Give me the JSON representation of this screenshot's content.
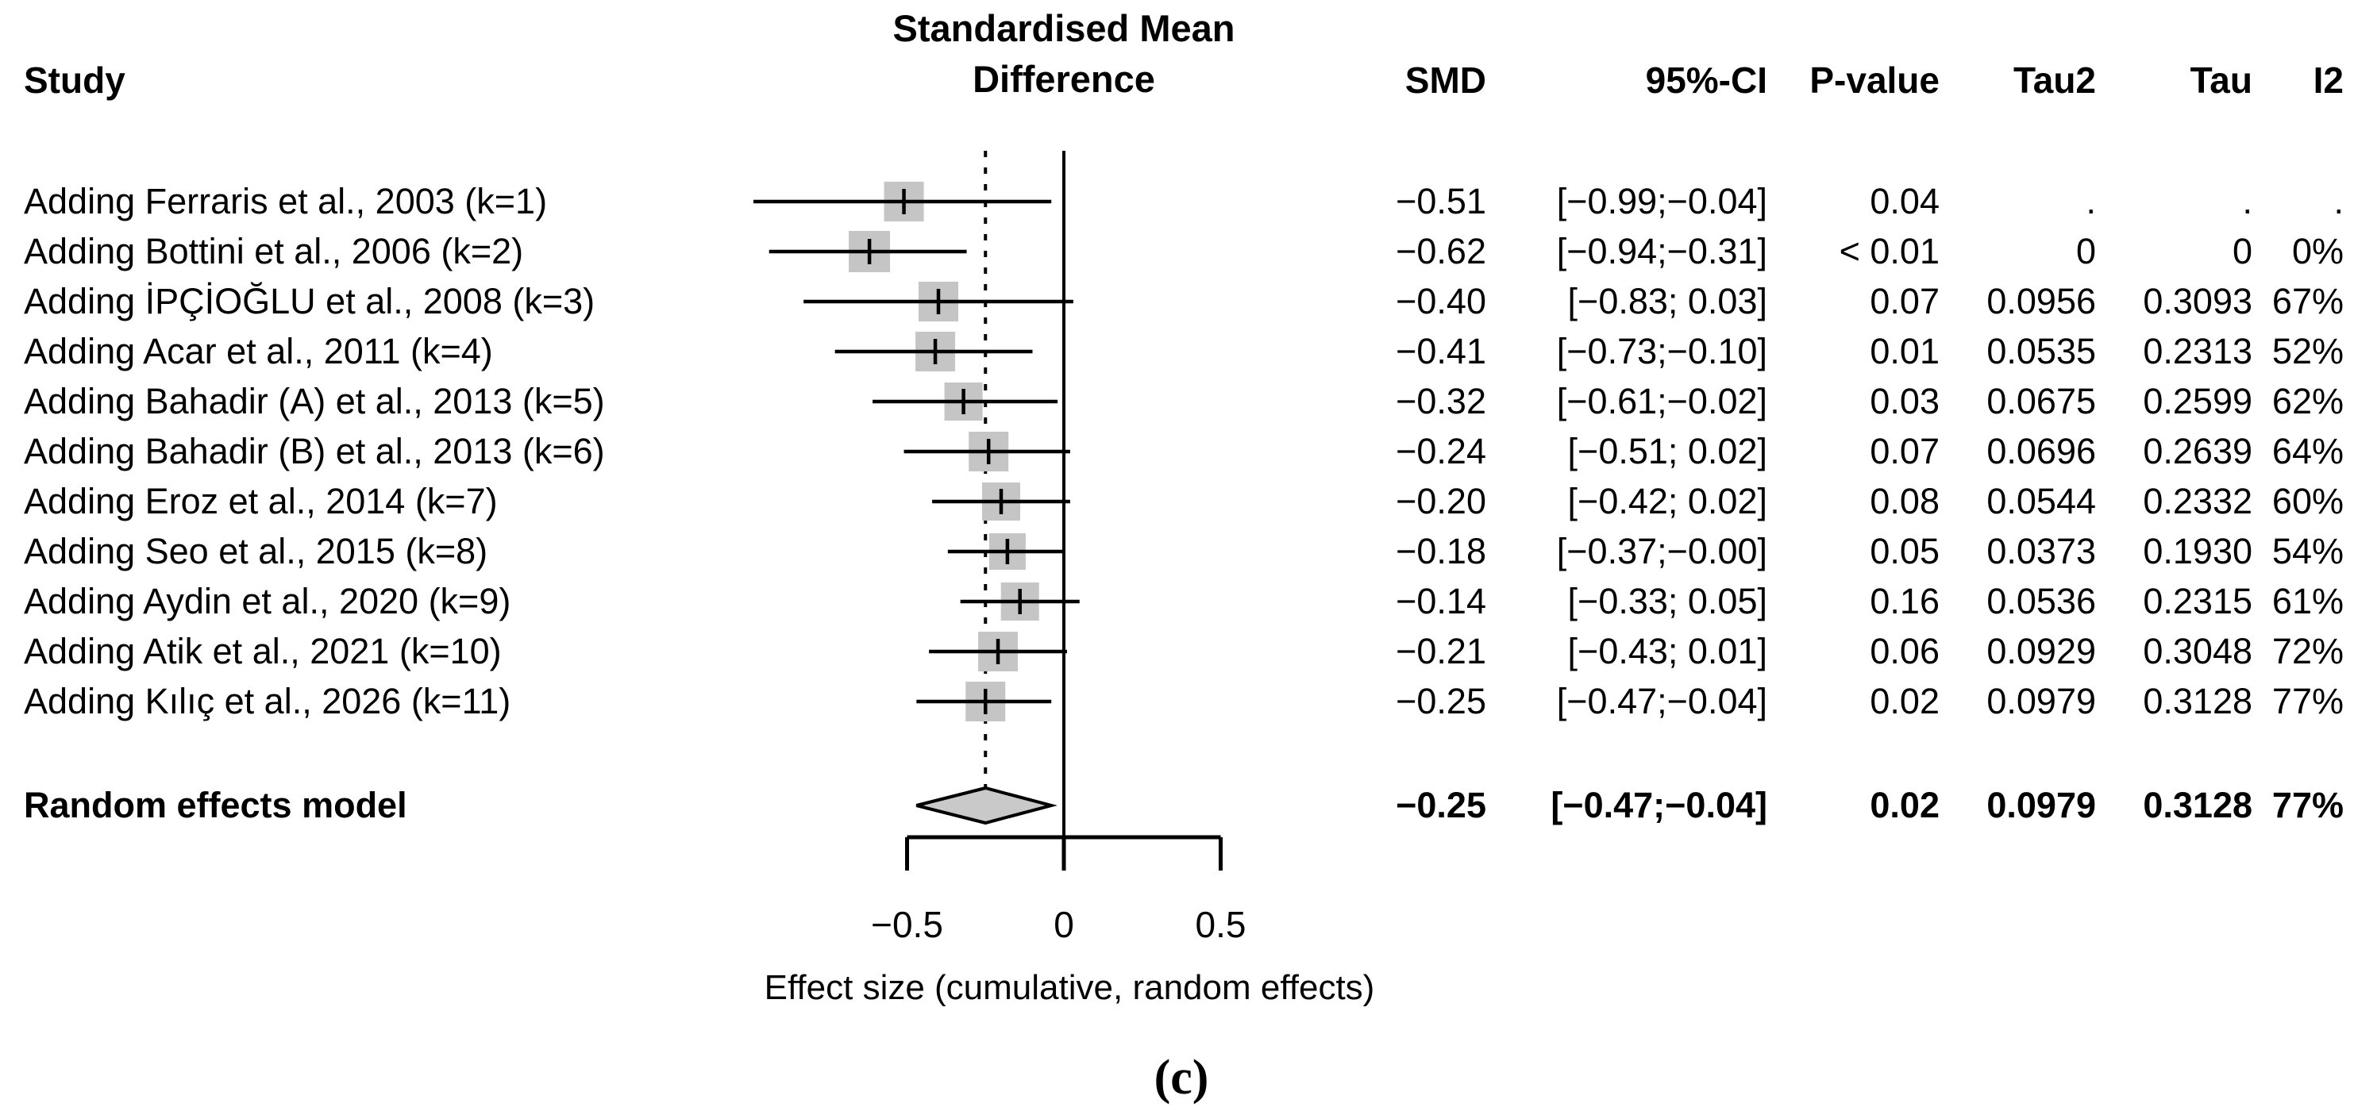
{
  "header": {
    "title_line1": "Standardised Mean",
    "title_line2": "Difference",
    "study_col": "Study",
    "smd_col": "SMD",
    "ci_col": "95%-CI",
    "pvalue_col": "P-value",
    "tau2_col": "Tau2",
    "tau_col": "Tau",
    "i2_col": "I2"
  },
  "caption": "(c)",
  "colors": {
    "square": "#c5c5c5",
    "diamond": "#c9c9c9",
    "line": "#000000",
    "text": "#000000",
    "background": "#ffffff"
  },
  "chart_data": {
    "type": "forest",
    "title": "Standardised Mean Difference",
    "xlabel": "Effect size (cumulative, random effects)",
    "xlim": [
      -1.05,
      0.55
    ],
    "x_ticks": [
      -0.5,
      0,
      0.5
    ],
    "x_tick_labels": [
      "−0.5",
      "0",
      "0.5"
    ],
    "reference_line": 0,
    "pooled_effect_line": -0.25,
    "grid": false,
    "studies": [
      {
        "label": "Adding Ferraris  et al., 2003 (k=1)",
        "smd": -0.51,
        "lo": -0.99,
        "hi": -0.04,
        "smd_text": "−0.51",
        "ci_text": "[−0.99;−0.04]",
        "p": "0.04",
        "tau2": ".",
        "tau": ".",
        "i2": ".",
        "size": 50
      },
      {
        "label": "Adding Bottini  et al., 2006 (k=2)",
        "smd": -0.62,
        "lo": -0.94,
        "hi": -0.31,
        "smd_text": "−0.62",
        "ci_text": "[−0.94;−0.31]",
        "p": "< 0.01",
        "tau2": "0",
        "tau": "0",
        "i2": "0%",
        "size": 52
      },
      {
        "label": "Adding İPÇİOĞLU et al., 2008 (k=3)",
        "smd": -0.4,
        "lo": -0.83,
        "hi": 0.03,
        "smd_text": "−0.40",
        "ci_text": "[−0.83; 0.03]",
        "p": "0.07",
        "tau2": "0.0956",
        "tau": "0.3093",
        "i2": "67%",
        "size": 50
      },
      {
        "label": "Adding Acar et al., 2011 (k=4)",
        "smd": -0.41,
        "lo": -0.73,
        "hi": -0.1,
        "smd_text": "−0.41",
        "ci_text": "[−0.73;−0.10]",
        "p": "0.01",
        "tau2": "0.0535",
        "tau": "0.2313",
        "i2": "52%",
        "size": 50
      },
      {
        "label": "Adding Bahadir  (A) et al., 2013 (k=5)",
        "smd": -0.32,
        "lo": -0.61,
        "hi": -0.02,
        "smd_text": "−0.32",
        "ci_text": "[−0.61;−0.02]",
        "p": "0.03",
        "tau2": "0.0675",
        "tau": "0.2599",
        "i2": "62%",
        "size": 48
      },
      {
        "label": "Adding Bahadir  (B) et al., 2013 (k=6)",
        "smd": -0.24,
        "lo": -0.51,
        "hi": 0.02,
        "smd_text": "−0.24",
        "ci_text": "[−0.51; 0.02]",
        "p": "0.07",
        "tau2": "0.0696",
        "tau": "0.2639",
        "i2": "64%",
        "size": 50
      },
      {
        "label": "Adding Eroz et al., 2014 (k=7)",
        "smd": -0.2,
        "lo": -0.42,
        "hi": 0.02,
        "smd_text": "−0.20",
        "ci_text": "[−0.42; 0.02]",
        "p": "0.08",
        "tau2": "0.0544",
        "tau": "0.2332",
        "i2": "60%",
        "size": 48
      },
      {
        "label": "Adding Seo et al., 2015 (k=8)",
        "smd": -0.18,
        "lo": -0.37,
        "hi": -0.004,
        "smd_text": "−0.18",
        "ci_text": "[−0.37;−0.00]",
        "p": "0.05",
        "tau2": "0.0373",
        "tau": "0.1930",
        "i2": "54%",
        "size": 46
      },
      {
        "label": "Adding Aydin  et al., 2020 (k=9)",
        "smd": -0.14,
        "lo": -0.33,
        "hi": 0.05,
        "smd_text": "−0.14",
        "ci_text": "[−0.33; 0.05]",
        "p": "0.16",
        "tau2": "0.0536",
        "tau": "0.2315",
        "i2": "61%",
        "size": 48
      },
      {
        "label": "Adding Atik et al., 2021 (k=10)",
        "smd": -0.21,
        "lo": -0.43,
        "hi": 0.01,
        "smd_text": "−0.21",
        "ci_text": "[−0.43; 0.01]",
        "p": "0.06",
        "tau2": "0.0929",
        "tau": "0.3048",
        "i2": "72%",
        "size": 50
      },
      {
        "label": "Adding Kılıç  et al., 2026 (k=11)",
        "smd": -0.25,
        "lo": -0.47,
        "hi": -0.04,
        "smd_text": "−0.25",
        "ci_text": "[−0.47;−0.04]",
        "p": "0.02",
        "tau2": "0.0979",
        "tau": "0.3128",
        "i2": "77%",
        "size": 50
      },
      {
        "label": "Random effects model",
        "pooled": true,
        "smd": -0.25,
        "lo": -0.47,
        "hi": -0.04,
        "smd_text": "−0.25",
        "ci_text": "[−0.47;−0.04]",
        "p": "0.02",
        "tau2": "0.0979",
        "tau": "0.3128",
        "i2": "77%",
        "size": 0
      }
    ]
  }
}
